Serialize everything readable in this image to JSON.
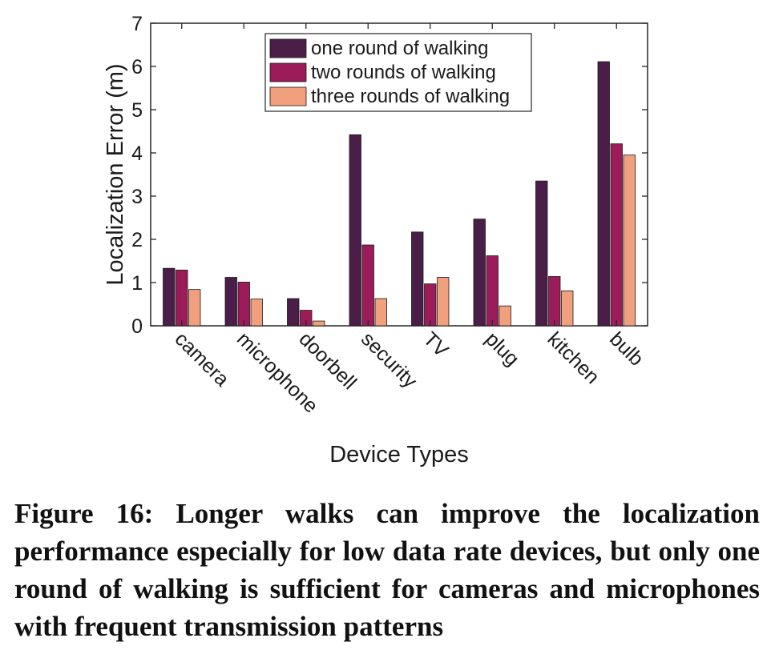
{
  "chart_data": {
    "type": "bar",
    "title": "",
    "xlabel": "Device Types",
    "ylabel": "Localization Error (m)",
    "ylim": [
      0,
      7
    ],
    "yticks": [
      "0",
      "1",
      "2",
      "3",
      "4",
      "5",
      "6",
      "7"
    ],
    "categories": [
      "camera",
      "microphone",
      "doorbell",
      "security",
      "TV",
      "plug",
      "kitchen",
      "bulb"
    ],
    "series": [
      {
        "name": "one round of walking",
        "color": "#4a1e48",
        "values": [
          1.33,
          1.12,
          0.63,
          4.42,
          2.17,
          2.47,
          3.35,
          6.11
        ]
      },
      {
        "name": "two rounds of walking",
        "color": "#9c1c5a",
        "values": [
          1.29,
          1.01,
          0.36,
          1.87,
          0.97,
          1.62,
          1.14,
          4.21
        ]
      },
      {
        "name": "three rounds of walking",
        "color": "#f0a07c",
        "values": [
          0.84,
          0.62,
          0.11,
          0.63,
          1.12,
          0.46,
          0.81,
          3.95
        ]
      }
    ],
    "legend_position": "top-center",
    "grid": false
  },
  "caption": "Figure 16: Longer walks can improve the localization performance especially for low data rate devices, but only one round of walking is sufficient for cameras and microphones with frequent transmission patterns"
}
